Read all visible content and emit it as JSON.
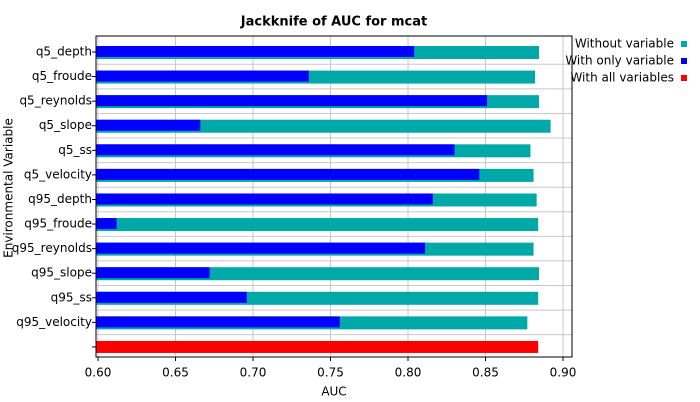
{
  "chart_data": {
    "type": "hbar",
    "title": "Jackknife of AUC for mcat",
    "xlabel": "AUC",
    "ylabel": "Environmental Variable",
    "categories": [
      "q5_depth",
      "q5_froude",
      "q5_reynolds",
      "q5_slope",
      "q5_ss",
      "q5_velocity",
      "q95_depth",
      "q95_froude",
      "q95_reynolds",
      "q95_slope",
      "q95_ss",
      "q95_velocity",
      null
    ],
    "series": [
      {
        "name": "Without variable",
        "color": "#00a8a8",
        "values": [
          0.8845,
          0.882,
          0.8845,
          0.892,
          0.879,
          0.881,
          0.883,
          0.884,
          0.881,
          0.8845,
          0.884,
          0.877,
          null
        ]
      },
      {
        "name": "With only variable",
        "color": "#0000ff",
        "values": [
          0.804,
          0.736,
          0.851,
          0.666,
          0.83,
          0.846,
          0.816,
          0.612,
          0.811,
          0.672,
          0.696,
          0.756,
          null
        ]
      },
      {
        "name": "With all variables",
        "color": "#ff0000",
        "values": [
          null,
          null,
          null,
          null,
          null,
          null,
          null,
          null,
          null,
          null,
          null,
          null,
          0.884
        ]
      }
    ],
    "xlim": [
      0.5987,
      0.9058
    ],
    "xticks": [
      {
        "value": 0.6,
        "label": "0.60"
      },
      0.65,
      {
        "value": 0.7,
        "label": "0.70"
      },
      0.75,
      {
        "value": 0.8,
        "label": "0.80"
      },
      0.85,
      {
        "value": 0.9,
        "label": "0.90"
      }
    ],
    "grid": true,
    "legend": "right"
  }
}
